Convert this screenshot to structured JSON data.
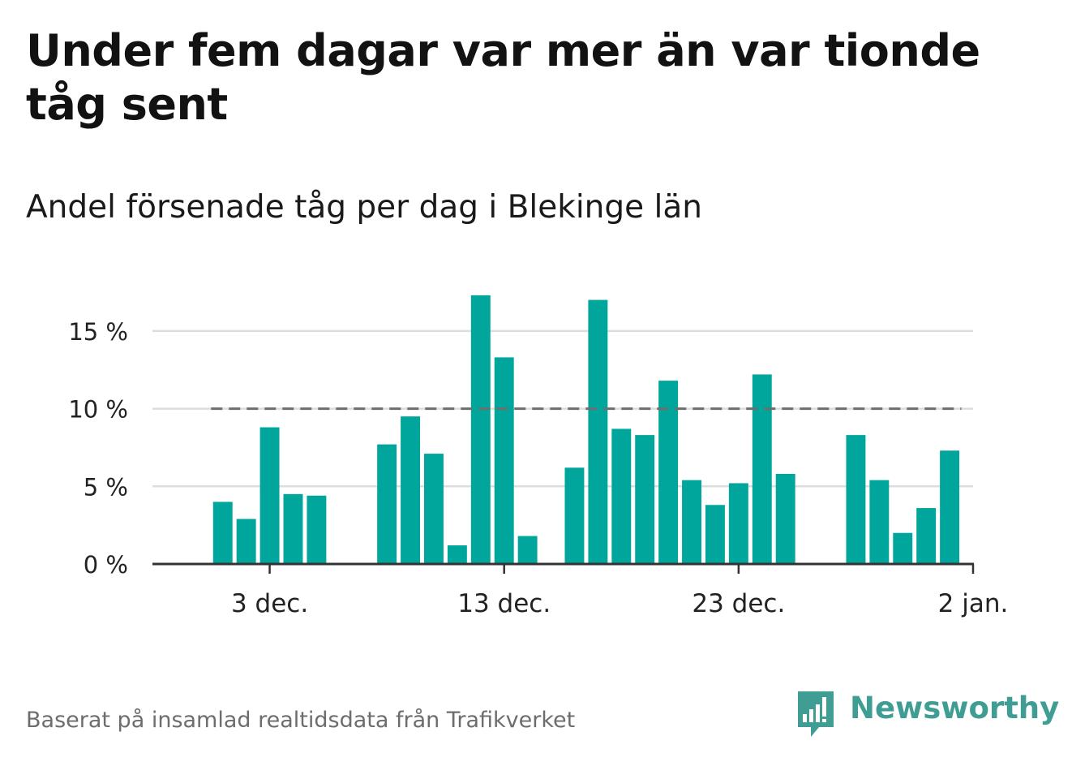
{
  "title": "Under fem dagar var mer än var tionde tåg sent",
  "subtitle": "Andel försenade tåg per dag i Blekinge län",
  "source": "Baserat på insamlad realtidsdata från Trafikverket",
  "brand": {
    "name": "Newsworthy",
    "logo_icon": "newsworthy-chart-bubble-icon"
  },
  "colors": {
    "bar": "#00a59b",
    "reference_line": "#6e6e6e",
    "grid": "#dddddd",
    "axis": "#333333",
    "brand": "#3f9d93"
  },
  "chart_data": {
    "type": "bar",
    "title": "",
    "xlabel": "",
    "ylabel": "",
    "ylim": [
      0,
      17.5
    ],
    "y_ticks": [
      {
        "value": 0,
        "label": "0 %"
      },
      {
        "value": 5,
        "label": "5 %"
      },
      {
        "value": 10,
        "label": "10 %"
      },
      {
        "value": 15,
        "label": "15 %"
      }
    ],
    "x_range": [
      "2023-11-28",
      "2024-01-02"
    ],
    "x_ticks": [
      {
        "date": "2023-12-03",
        "label": "3 dec."
      },
      {
        "date": "2023-12-13",
        "label": "13 dec."
      },
      {
        "date": "2023-12-23",
        "label": "23 dec."
      },
      {
        "date": "2024-01-02",
        "label": "2 jan."
      }
    ],
    "reference_line": {
      "value": 10,
      "from": "2023-12-01",
      "to": "2024-01-01",
      "style": "dashed"
    },
    "grid": true,
    "bars": [
      {
        "date": "2023-12-01",
        "value": 4.0
      },
      {
        "date": "2023-12-02",
        "value": 2.9
      },
      {
        "date": "2023-12-03",
        "value": 8.8
      },
      {
        "date": "2023-12-04",
        "value": 4.5
      },
      {
        "date": "2023-12-05",
        "value": 4.4
      },
      {
        "date": "2023-12-08",
        "value": 7.7
      },
      {
        "date": "2023-12-09",
        "value": 9.5
      },
      {
        "date": "2023-12-10",
        "value": 7.1
      },
      {
        "date": "2023-12-11",
        "value": 1.2
      },
      {
        "date": "2023-12-12",
        "value": 17.3
      },
      {
        "date": "2023-12-13",
        "value": 13.3
      },
      {
        "date": "2023-12-14",
        "value": 1.8
      },
      {
        "date": "2023-12-16",
        "value": 6.2
      },
      {
        "date": "2023-12-17",
        "value": 17.0
      },
      {
        "date": "2023-12-18",
        "value": 8.7
      },
      {
        "date": "2023-12-19",
        "value": 8.3
      },
      {
        "date": "2023-12-20",
        "value": 11.8
      },
      {
        "date": "2023-12-21",
        "value": 5.4
      },
      {
        "date": "2023-12-22",
        "value": 3.8
      },
      {
        "date": "2023-12-23",
        "value": 5.2
      },
      {
        "date": "2023-12-24",
        "value": 12.2
      },
      {
        "date": "2023-12-25",
        "value": 5.8
      },
      {
        "date": "2023-12-28",
        "value": 8.3
      },
      {
        "date": "2023-12-29",
        "value": 5.4
      },
      {
        "date": "2023-12-30",
        "value": 2.0
      },
      {
        "date": "2023-12-31",
        "value": 3.6
      },
      {
        "date": "2024-01-01",
        "value": 7.3
      }
    ]
  }
}
